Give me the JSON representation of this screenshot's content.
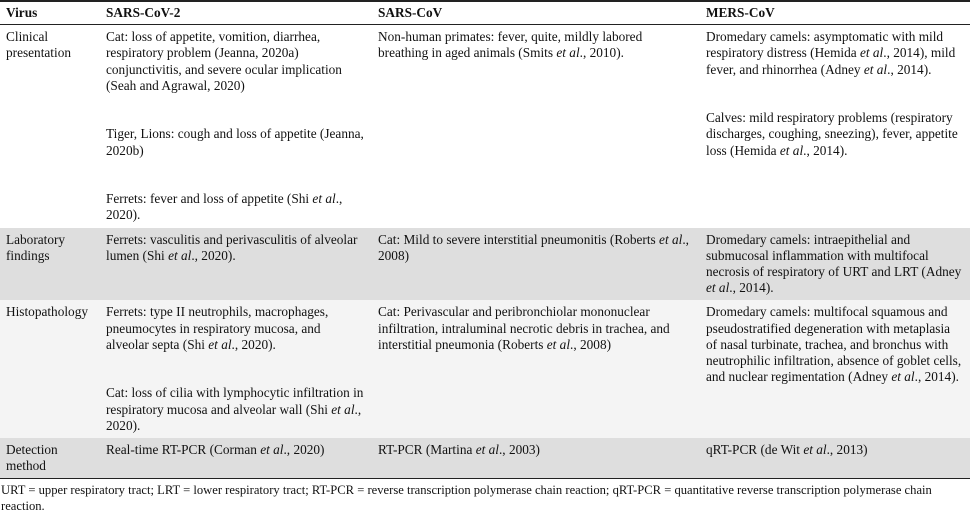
{
  "table": {
    "headers": [
      "Virus",
      "SARS-CoV-2",
      "SARS-CoV",
      "MERS-CoV"
    ],
    "rows": [
      {
        "label": "Clinical presentation",
        "shade": "white",
        "cells": [
          [
            [
              {
                "t": "Cat: loss of appetite, vomition, diarrhea, respiratory problem (Jeanna, 2020a) conjunctivitis, and severe ocular implication (Seah and Agrawal, 2020)"
              }
            ],
            [
              {
                "t": "Tiger, Lions: cough and loss of appetite (Jeanna, 2020b)"
              }
            ],
            [
              {
                "t": "Ferrets: fever and loss of appetite (Shi "
              },
              {
                "t": "et al",
                "i": true
              },
              {
                "t": "., 2020)."
              }
            ]
          ],
          [
            [
              {
                "t": "Non-human primates: fever, quite, mildly labored breathing in aged animals (Smits "
              },
              {
                "t": "et al",
                "i": true
              },
              {
                "t": "., 2010)."
              }
            ]
          ],
          [
            [
              {
                "t": "Dromedary camels: asymptomatic with mild respiratory distress (Hemida "
              },
              {
                "t": "et al",
                "i": true
              },
              {
                "t": "., 2014), mild fever, and rhinorrhea (Adney "
              },
              {
                "t": "et al",
                "i": true
              },
              {
                "t": "., 2014)."
              }
            ],
            [
              {
                "t": "Calves: mild respiratory problems (respiratory discharges, coughing, sneezing), fever, appetite loss (Hemida "
              },
              {
                "t": "et al",
                "i": true
              },
              {
                "t": "., 2014)."
              }
            ]
          ]
        ]
      },
      {
        "label": "Laboratory findings",
        "shade": "gray",
        "cells": [
          [
            [
              {
                "t": "Ferrets: vasculitis and perivasculitis of alveolar lumen (Shi "
              },
              {
                "t": "et al",
                "i": true
              },
              {
                "t": "., 2020)."
              }
            ]
          ],
          [
            [
              {
                "t": "Cat: Mild to severe interstitial pneumonitis (Roberts "
              },
              {
                "t": "et al",
                "i": true
              },
              {
                "t": "., 2008)"
              }
            ]
          ],
          [
            [
              {
                "t": "Dromedary camels: intraepithelial and submucosal inflammation with multifocal necrosis of respiratory of URT and LRT (Adney "
              },
              {
                "t": "et al",
                "i": true
              },
              {
                "t": "., 2014)."
              }
            ]
          ]
        ]
      },
      {
        "label": "Histopathology",
        "shade": "light",
        "cells": [
          [
            [
              {
                "t": "Ferrets: type II neutrophils, macrophages, pneumocytes in respiratory mucosa, and alveolar septa (Shi "
              },
              {
                "t": "et al",
                "i": true
              },
              {
                "t": "., 2020)."
              }
            ],
            [
              {
                "t": "Cat: loss of cilia with lymphocytic infiltration in respiratory mucosa and alveolar wall (Shi "
              },
              {
                "t": "et al",
                "i": true
              },
              {
                "t": "., 2020)."
              }
            ]
          ],
          [
            [
              {
                "t": "Cat: Perivascular and peribronchiolar mononuclear infiltration, intraluminal necrotic debris in trachea, and interstitial pneumonia (Roberts "
              },
              {
                "t": "et al",
                "i": true
              },
              {
                "t": "., 2008)"
              }
            ]
          ],
          [
            [
              {
                "t": "Dromedary camels: multifocal squamous and pseudostratified degeneration with metaplasia of nasal turbinate, trachea, and bronchus with neutrophilic infiltration, absence of goblet cells, and nuclear regimentation (Adney "
              },
              {
                "t": "et al",
                "i": true
              },
              {
                "t": "., 2014)."
              }
            ]
          ]
        ]
      },
      {
        "label": "Detection method",
        "shade": "gray",
        "cells": [
          [
            [
              {
                "t": "Real-time RT-PCR (Corman "
              },
              {
                "t": "et al",
                "i": true
              },
              {
                "t": "., 2020)"
              }
            ]
          ],
          [
            [
              {
                "t": "RT-PCR (Martina "
              },
              {
                "t": "et al",
                "i": true
              },
              {
                "t": "., 2003)"
              }
            ]
          ],
          [
            [
              {
                "t": "qRT-PCR (de Wit "
              },
              {
                "t": "et al",
                "i": true
              },
              {
                "t": "., 2013)"
              }
            ]
          ]
        ]
      }
    ]
  },
  "footnote": "URT = upper respiratory tract; LRT = lower respiratory tract; RT-PCR = reverse transcription polymerase chain reaction; qRT-PCR = quantitative reverse transcription polymerase chain reaction.",
  "colors": {
    "gray_row": "#dedede",
    "light_row": "#f4f4f4",
    "rule": "#222222"
  }
}
